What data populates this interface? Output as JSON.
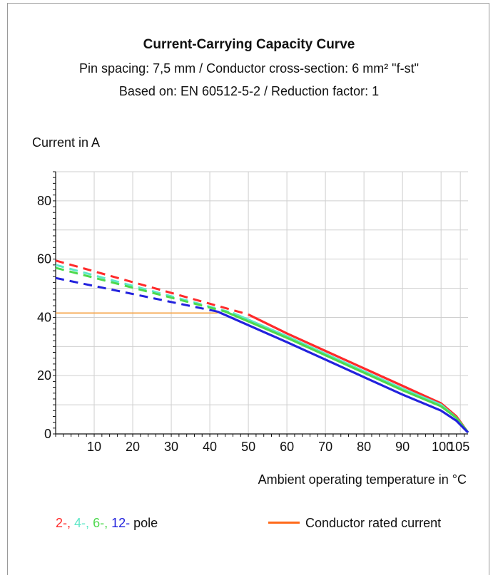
{
  "chart_data": {
    "type": "line",
    "title": "Current-Carrying Capacity Curve",
    "subtitle_lines": [
      "Pin spacing: 7,5 mm / Conductor cross-section: 6 mm² \"f-st\"",
      "Based on: EN 60512-5-2 / Reduction factor: 1"
    ],
    "ylabel": "Current in A",
    "xlabel": "Ambient operating temperature in °C",
    "xlim": [
      0,
      107
    ],
    "ylim": [
      0,
      90
    ],
    "x_ticks": [
      "10",
      "20",
      "30",
      "40",
      "50",
      "60",
      "70",
      "80",
      "90",
      "100",
      "105"
    ],
    "x_tick_values": [
      10,
      20,
      30,
      40,
      50,
      60,
      70,
      80,
      90,
      100,
      105
    ],
    "y_ticks": [
      "0",
      "20",
      "40",
      "60",
      "80"
    ],
    "y_tick_values": [
      0,
      20,
      40,
      60,
      80
    ],
    "grid": true,
    "series": [
      {
        "name": "2-",
        "color": "#ff2a2a",
        "dashed": {
          "x": [
            0,
            50
          ],
          "y": [
            59.5,
            41
          ]
        },
        "solid": {
          "x": [
            50,
            60,
            70,
            80,
            90,
            100,
            104,
            107
          ],
          "y": [
            41,
            34.5,
            28.5,
            22.5,
            16.5,
            10.5,
            6,
            0.5
          ]
        }
      },
      {
        "name": "4-",
        "color": "#5ee8c8",
        "dashed": {
          "x": [
            0,
            46
          ],
          "y": [
            58,
            41.5
          ]
        },
        "solid": {
          "x": [
            46,
            60,
            70,
            80,
            90,
            100,
            104,
            107
          ],
          "y": [
            41.5,
            33.5,
            27.5,
            21.5,
            15.5,
            10,
            5.5,
            0.5
          ]
        }
      },
      {
        "name": "6-",
        "color": "#4dd94d",
        "dashed": {
          "x": [
            0,
            44
          ],
          "y": [
            57,
            42
          ]
        },
        "solid": {
          "x": [
            44,
            60,
            70,
            80,
            90,
            100,
            104,
            107
          ],
          "y": [
            42,
            33,
            27,
            21,
            15,
            9.5,
            5.5,
            0.5
          ]
        }
      },
      {
        "name": "12-",
        "color": "#2222dd",
        "dashed": {
          "x": [
            0,
            42
          ],
          "y": [
            53.5,
            42
          ]
        },
        "solid": {
          "x": [
            42,
            60,
            70,
            80,
            90,
            100,
            104,
            107
          ],
          "y": [
            42,
            31.5,
            25.5,
            19.5,
            13.5,
            8,
            4.5,
            0.5
          ]
        }
      },
      {
        "name": "Conductor rated current",
        "color": "#f5a040",
        "solid": {
          "x": [
            0,
            42
          ],
          "y": [
            41.5,
            41.5
          ]
        }
      }
    ]
  },
  "legend": {
    "items": [
      {
        "text": "2-,",
        "color": "#ff2a2a"
      },
      {
        "text": "4-,",
        "color": "#5ee8c8"
      },
      {
        "text": "6-,",
        "color": "#4dd94d"
      },
      {
        "text": "12-",
        "color": "#2222dd"
      },
      {
        "text": "pole",
        "color": "#111111"
      }
    ],
    "rated_label": "Conductor rated current",
    "rated_color": "#ff6a1a"
  }
}
